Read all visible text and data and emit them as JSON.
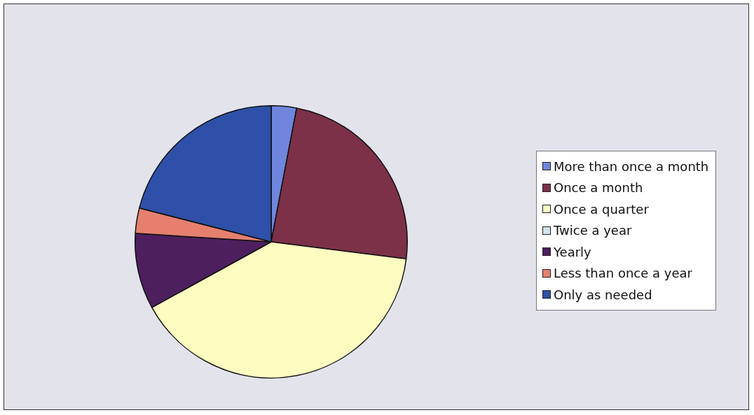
{
  "chart_data": {
    "type": "pie",
    "categories": [
      "More than once a month",
      "Once a month",
      "Once a quarter",
      "Twice a year",
      "Yearly",
      "Less than once a year",
      "Only as needed"
    ],
    "values": [
      3,
      24,
      40,
      0,
      9,
      3,
      21
    ],
    "colors": [
      "#6f86dc",
      "#7c3148",
      "#fcfcc0",
      "#cde3ee",
      "#4d1f5e",
      "#e5806f",
      "#2e50a8"
    ],
    "legend": "right"
  }
}
